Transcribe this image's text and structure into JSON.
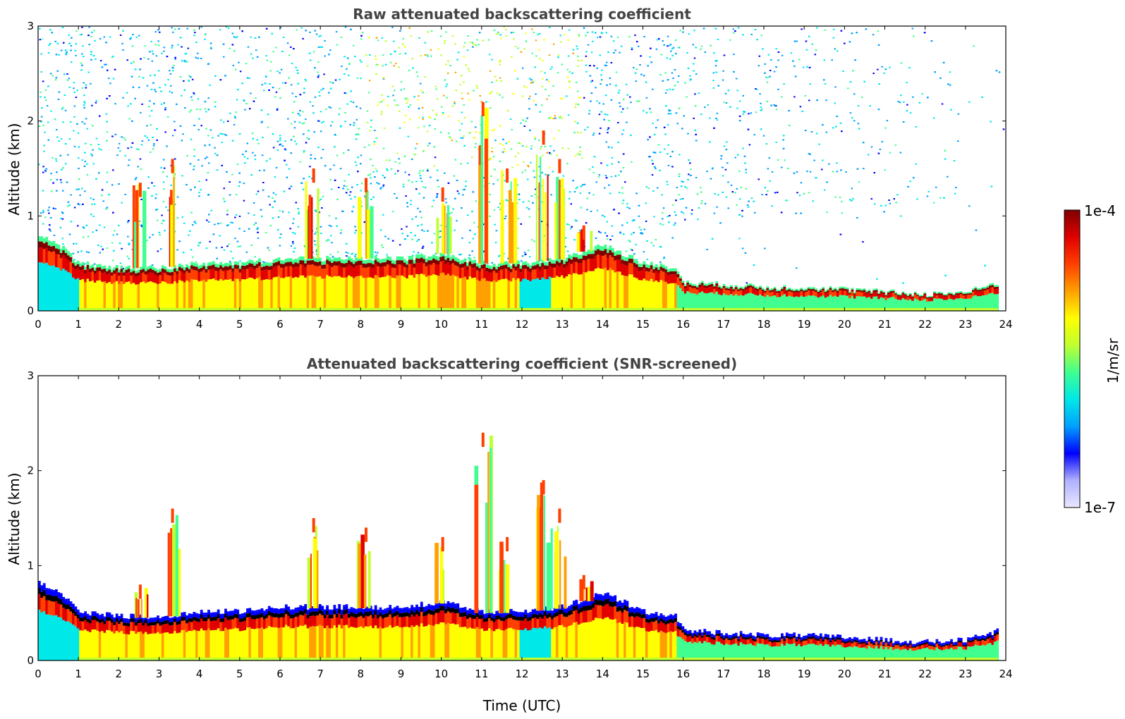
{
  "chart_data": [
    {
      "type": "heatmap",
      "title": "Raw attenuated backscattering coefficient",
      "xlabel": "",
      "ylabel": "Altitude (km)",
      "xlim": [
        0,
        24
      ],
      "ylim": [
        0,
        3
      ],
      "x_ticks": [
        "0",
        "1",
        "2",
        "3",
        "4",
        "5",
        "6",
        "7",
        "8",
        "9",
        "10",
        "11",
        "12",
        "13",
        "14",
        "15",
        "16",
        "17",
        "18",
        "19",
        "20",
        "21",
        "22",
        "23",
        "24"
      ],
      "y_ticks": [
        "0",
        "1",
        "2",
        "3"
      ],
      "screened": false,
      "boundary_layer_top_km": {
        "time_utc": [
          0,
          0.5,
          1,
          2,
          3,
          4,
          5,
          6,
          7,
          8,
          9,
          10,
          11,
          12,
          13,
          14,
          14.5,
          15,
          15.8,
          16,
          17,
          18,
          19,
          20,
          21,
          22,
          23,
          23.8
        ],
        "altitude": [
          0.8,
          0.7,
          0.5,
          0.45,
          0.45,
          0.5,
          0.5,
          0.55,
          0.55,
          0.55,
          0.55,
          0.6,
          0.5,
          0.5,
          0.55,
          0.7,
          0.6,
          0.5,
          0.45,
          0.3,
          0.28,
          0.25,
          0.25,
          0.23,
          0.2,
          0.18,
          0.2,
          0.3
        ]
      },
      "plumes": [
        {
          "time_utc": 2.5,
          "top_km": 1.35
        },
        {
          "time_utc": 3.3,
          "top_km": 1.6
        },
        {
          "time_utc": 6.8,
          "top_km": 1.5
        },
        {
          "time_utc": 8.1,
          "top_km": 1.4
        },
        {
          "time_utc": 10.0,
          "top_km": 1.3
        },
        {
          "time_utc": 11.0,
          "top_km": 2.2
        },
        {
          "time_utc": 11.6,
          "top_km": 1.5
        },
        {
          "time_utc": 12.5,
          "top_km": 1.9
        },
        {
          "time_utc": 12.9,
          "top_km": 1.6
        },
        {
          "time_utc": 13.5,
          "top_km": 0.9
        }
      ]
    },
    {
      "type": "heatmap",
      "title": "Attenuated backscattering coefficient (SNR-screened)",
      "xlabel": "Time (UTC)",
      "ylabel": "Altitude (km)",
      "xlim": [
        0,
        24
      ],
      "ylim": [
        0,
        3
      ],
      "x_ticks": [
        "0",
        "1",
        "2",
        "3",
        "4",
        "5",
        "6",
        "7",
        "8",
        "9",
        "10",
        "11",
        "12",
        "13",
        "14",
        "15",
        "16",
        "17",
        "18",
        "19",
        "20",
        "21",
        "22",
        "23",
        "24"
      ],
      "y_ticks": [
        "0",
        "1",
        "2",
        "3"
      ],
      "screened": true,
      "boundary_layer_top_km": {
        "time_utc": [
          0,
          0.5,
          1,
          2,
          3,
          4,
          5,
          6,
          7,
          8,
          9,
          10,
          11,
          12,
          13,
          14,
          14.5,
          15,
          15.8,
          16,
          17,
          18,
          19,
          20,
          21,
          22,
          23,
          23.8
        ],
        "altitude": [
          0.8,
          0.7,
          0.5,
          0.45,
          0.45,
          0.5,
          0.5,
          0.55,
          0.55,
          0.55,
          0.55,
          0.6,
          0.5,
          0.5,
          0.55,
          0.7,
          0.6,
          0.5,
          0.45,
          0.3,
          0.28,
          0.25,
          0.25,
          0.23,
          0.2,
          0.18,
          0.2,
          0.3
        ]
      },
      "plumes": [
        {
          "time_utc": 2.5,
          "top_km": 0.8
        },
        {
          "time_utc": 3.3,
          "top_km": 1.6
        },
        {
          "time_utc": 6.8,
          "top_km": 1.5
        },
        {
          "time_utc": 8.1,
          "top_km": 1.4
        },
        {
          "time_utc": 10.0,
          "top_km": 1.3
        },
        {
          "time_utc": 11.0,
          "top_km": 2.4
        },
        {
          "time_utc": 11.6,
          "top_km": 1.3
        },
        {
          "time_utc": 12.5,
          "top_km": 1.9
        },
        {
          "time_utc": 12.9,
          "top_km": 1.6
        },
        {
          "time_utc": 13.5,
          "top_km": 0.9
        }
      ]
    }
  ],
  "colorbar": {
    "label": "1/m/sr",
    "min_label": "1e-7",
    "max_label": "1e-4",
    "scale": "log",
    "stops": [
      "#e8e8ff",
      "#b0b0ff",
      "#0000ff",
      "#00a0ff",
      "#00e8e8",
      "#40ff90",
      "#c0ff30",
      "#ffff00",
      "#ffa000",
      "#ff4000",
      "#e00000",
      "#800000"
    ]
  }
}
